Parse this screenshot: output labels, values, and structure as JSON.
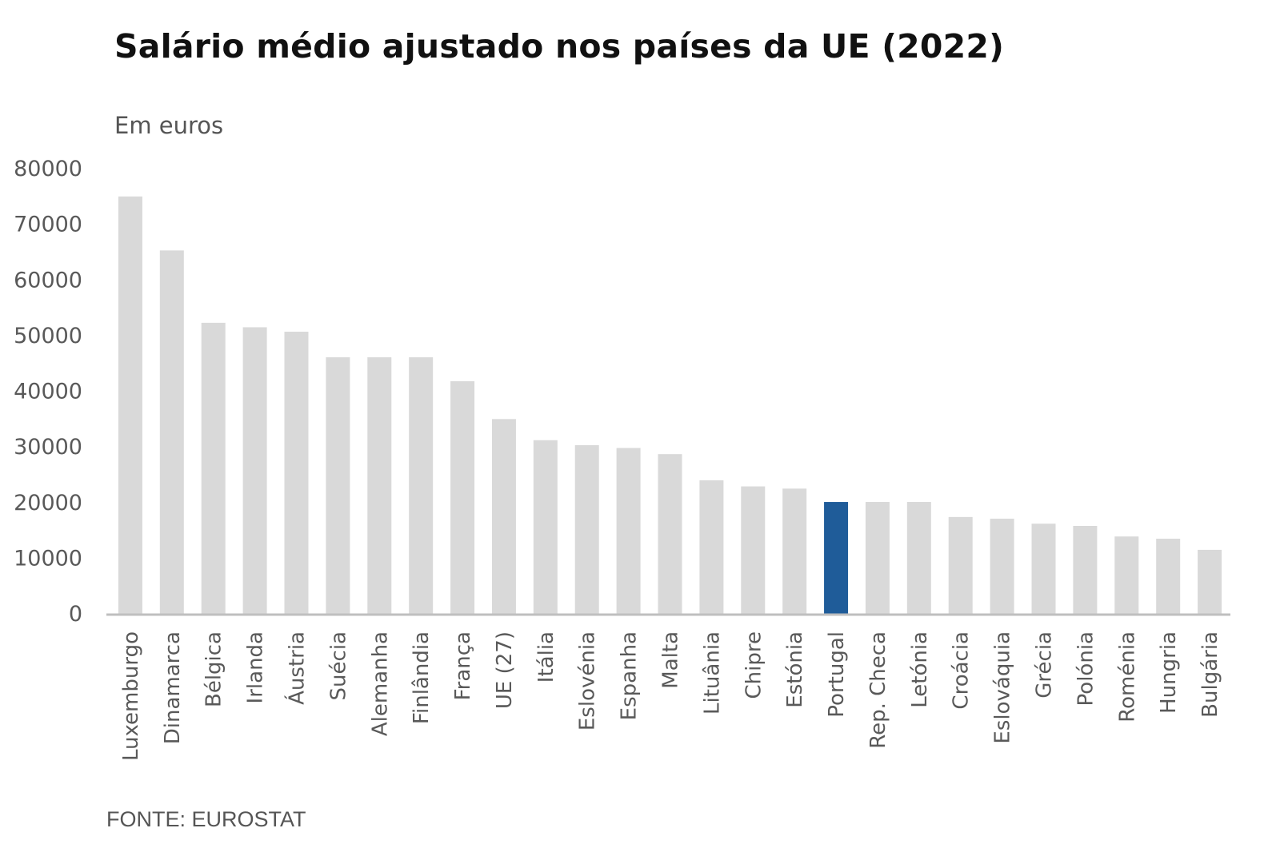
{
  "chart_data": {
    "type": "bar",
    "title": "Salário médio ajustado nos países da UE (2022)",
    "subtitle": "Em euros",
    "source": "FONTE: EUROSTAT",
    "xlabel": "",
    "ylabel": "",
    "ylim": [
      0,
      80000
    ],
    "yticks": [
      0,
      10000,
      20000,
      30000,
      40000,
      50000,
      60000,
      70000,
      80000
    ],
    "grid": false,
    "categories": [
      "Luxemburgo",
      "Dinamarca",
      "Bélgica",
      "Irlanda",
      "Áustria",
      "Suécia",
      "Alemanha",
      "Finlândia",
      "França",
      "UE (27)",
      "Itália",
      "Eslovénia",
      "Espanha",
      "Malta",
      "Lituânia",
      "Chipre",
      "Estónia",
      "Portugal",
      "Rep. Checa",
      "Letónia",
      "Croácia",
      "Eslováquia",
      "Grécia",
      "Polónia",
      "Roménia",
      "Hungria",
      "Bulgária"
    ],
    "values": [
      75000,
      65300,
      52300,
      51500,
      50700,
      46100,
      46100,
      46100,
      41800,
      35000,
      31200,
      30300,
      29800,
      28700,
      24000,
      22900,
      22500,
      20100,
      20100,
      20100,
      17400,
      17100,
      16200,
      15800,
      13900,
      13500,
      11500
    ],
    "highlight": "Portugal",
    "colors": {
      "bar": "#d9d9d9",
      "highlight": "#1f5c99",
      "axis": "#bfbfbf"
    }
  }
}
